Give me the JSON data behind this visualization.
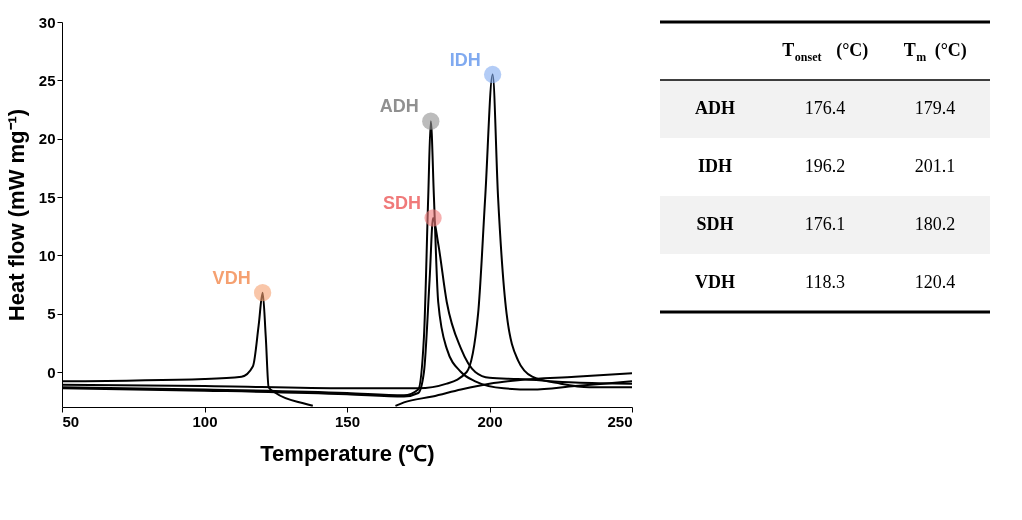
{
  "chart_data": [
    {
      "type": "line",
      "xlabel": "Temperature (℃)",
      "ylabel": "Heat flow (mW mg⁻¹)",
      "xlim": [
        50,
        250
      ],
      "xticks": [
        50,
        100,
        150,
        200,
        250
      ],
      "ylim": [
        -3,
        30
      ],
      "yticks": [
        0,
        5,
        10,
        15,
        20,
        25,
        30
      ],
      "grid": false,
      "legend": false,
      "line_style": "solid",
      "series": [
        {
          "color": "#000000",
          "x": [
            50,
            100,
            113,
            117,
            119,
            120.4,
            121.5,
            122.5,
            125,
            135,
            138,
            150,
            160,
            167,
            170,
            180,
            190,
            200,
            210,
            230,
            250
          ],
          "values": [
            -0.8,
            -0.6,
            -0.4,
            0.5,
            4,
            6.8,
            3,
            -1.3,
            -1.8,
            -2.7,
            -2.9,
            null,
            null,
            -2.9,
            -2.6,
            -2.1,
            -1.5,
            -1.0,
            -0.7,
            -0.4,
            -0.1
          ]
        },
        {
          "color": "#000000",
          "x": [
            50,
            100,
            150,
            170,
            175,
            177,
            178.5,
            179.4,
            180.5,
            182,
            185,
            190,
            195,
            205,
            215,
            230,
            250
          ],
          "values": [
            -1.3,
            -1.5,
            -1.8,
            -2.0,
            -1.5,
            3,
            15,
            21.5,
            15,
            6,
            2,
            0,
            -0.8,
            -1.4,
            -1.5,
            -1.2,
            -0.8
          ]
        },
        {
          "color": "#000000",
          "x": [
            50,
            100,
            150,
            175,
            185,
            192,
            196,
            198.5,
            201.1,
            203,
            206,
            210,
            215,
            225,
            235,
            250
          ],
          "values": [
            -1.1,
            -1.2,
            -1.4,
            -1.4,
            -1.0,
            0,
            5,
            15,
            25.5,
            15,
            5,
            1,
            -0.4,
            -1.0,
            -1.3,
            -1.3
          ]
        },
        {
          "color": "#000000",
          "x": [
            50,
            100,
            150,
            170,
            175,
            177,
            179,
            180.2,
            182,
            185,
            190,
            195,
            200,
            210,
            230,
            250
          ],
          "values": [
            -1.4,
            -1.6,
            -1.9,
            -2.1,
            -1.8,
            0,
            8,
            13.2,
            11,
            6,
            2,
            0,
            -0.5,
            -0.6,
            -0.9,
            -1.0
          ]
        },
        {
          "type": "scatter",
          "name": "VDH",
          "color": "#f5a070",
          "x": [
            120.4
          ],
          "values": [
            6.8
          ]
        },
        {
          "type": "scatter",
          "name": "ADH",
          "color": "#909090",
          "x": [
            179.4
          ],
          "values": [
            21.5
          ]
        },
        {
          "type": "scatter",
          "name": "SDH",
          "color": "#f07a7a",
          "x": [
            180.2
          ],
          "values": [
            13.2
          ]
        },
        {
          "type": "scatter",
          "name": "IDH",
          "color": "#80aaf0",
          "x": [
            201.1
          ],
          "values": [
            25.5
          ]
        }
      ]
    },
    {
      "type": "other",
      "annotations": [
        "T$_{onset}$ (°C)",
        "T$_{m}$ (°C)",
        "ADH",
        "176.4",
        "179.4",
        "IDH",
        "196.2",
        "201.1",
        "SDH",
        "176.1",
        "180.2",
        "VDH",
        "118.3",
        "120.4"
      ]
    }
  ]
}
